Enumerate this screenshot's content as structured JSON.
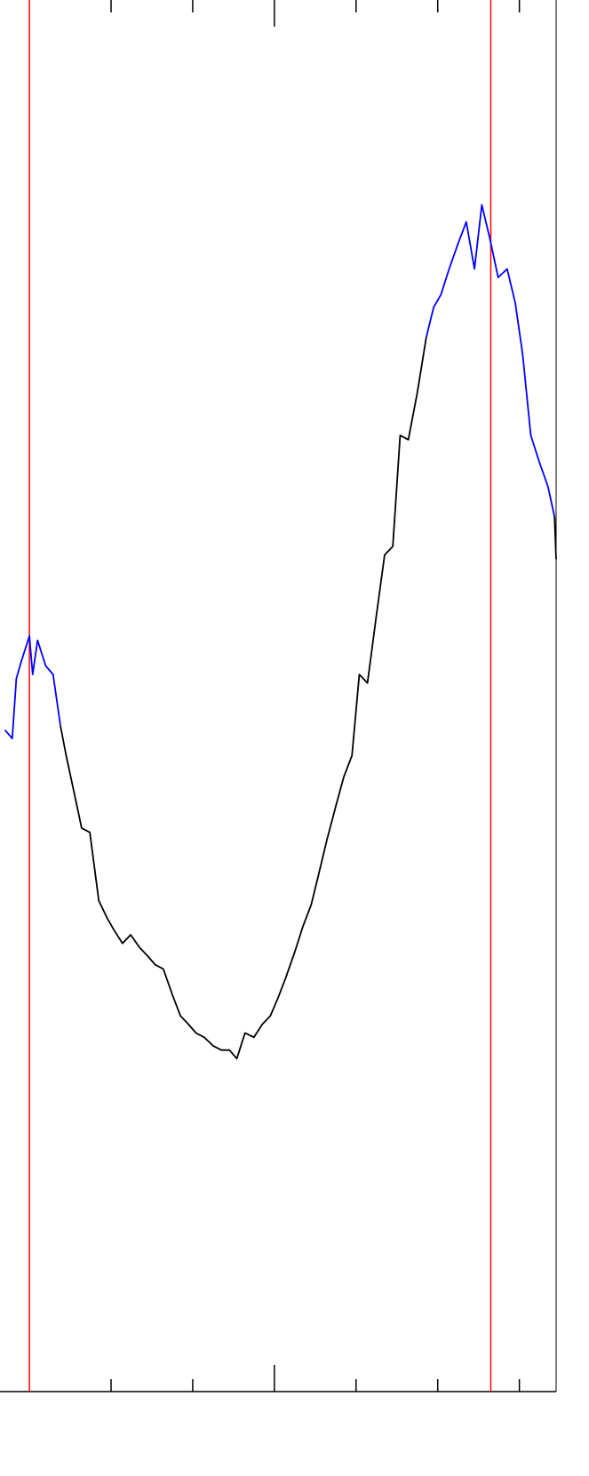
{
  "chart_data": {
    "type": "line",
    "xlim": [
      -3.36,
      3.45
    ],
    "ylim": [
      -1.78,
      1.48
    ],
    "xticks": [
      -2,
      -1,
      0,
      1,
      2,
      3
    ],
    "major_xticks": [
      0
    ],
    "vlines": [
      {
        "x": -3.0,
        "color": "#ff0000"
      },
      {
        "x": 2.65,
        "color": "#ff0000"
      }
    ],
    "x": [
      -3.3,
      -3.21,
      -3.16,
      -3.1,
      -3.0,
      -2.96,
      -2.9,
      -2.8,
      -2.71,
      -2.62,
      -2.55,
      -2.46,
      -2.36,
      -2.26,
      -2.15,
      -2.05,
      -1.96,
      -1.86,
      -1.76,
      -1.65,
      -1.55,
      -1.46,
      -1.36,
      -1.25,
      -1.15,
      -1.05,
      -0.96,
      -0.86,
      -0.75,
      -0.65,
      -0.55,
      -0.46,
      -0.36,
      -0.25,
      -0.15,
      -0.05,
      0.04,
      0.14,
      0.25,
      0.35,
      0.45,
      0.54,
      0.64,
      0.75,
      0.85,
      0.95,
      1.04,
      1.14,
      1.25,
      1.35,
      1.45,
      1.54,
      1.64,
      1.75,
      1.86,
      1.95,
      2.04,
      2.14,
      2.25,
      2.35,
      2.45,
      2.54,
      2.64,
      2.74,
      2.85,
      2.95,
      3.04,
      3.14,
      3.24,
      3.35,
      3.43,
      3.45
    ],
    "series": [
      {
        "color": "#0000ff",
        "values": [
          -0.23,
          -0.25,
          -0.11,
          -0.07,
          -0.01,
          -0.1,
          -0.02,
          -0.08,
          -0.1,
          -0.22,
          null,
          null,
          null,
          null,
          null,
          null,
          null,
          null,
          null,
          null,
          null,
          null,
          null,
          null,
          null,
          null,
          null,
          null,
          null,
          null,
          null,
          null,
          null,
          null,
          null,
          null,
          null,
          null,
          null,
          null,
          null,
          null,
          null,
          null,
          null,
          null,
          null,
          null,
          null,
          null,
          null,
          null,
          null,
          null,
          0.69,
          0.76,
          0.79,
          0.85,
          0.91,
          0.96,
          0.85,
          1.0,
          0.92,
          0.83,
          0.85,
          0.77,
          0.65,
          0.46,
          0.4,
          0.34,
          0.27,
          null
        ]
      },
      {
        "color": "#000000",
        "values": [
          null,
          null,
          null,
          null,
          null,
          null,
          null,
          null,
          null,
          -0.22,
          -0.29,
          -0.37,
          -0.46,
          -0.47,
          -0.63,
          -0.67,
          -0.7,
          -0.73,
          -0.71,
          -0.74,
          -0.76,
          -0.78,
          -0.79,
          -0.85,
          -0.9,
          -0.92,
          -0.94,
          -0.95,
          -0.97,
          -0.98,
          -0.98,
          -1.0,
          -0.94,
          -0.95,
          -0.92,
          -0.9,
          -0.86,
          -0.81,
          -0.75,
          -0.69,
          -0.64,
          -0.57,
          -0.49,
          -0.41,
          -0.34,
          -0.29,
          -0.1,
          -0.12,
          0.04,
          0.18,
          0.2,
          0.46,
          0.45,
          0.56,
          0.69,
          null,
          null,
          null,
          null,
          null,
          null,
          null,
          null,
          null,
          null,
          null,
          null,
          null,
          null,
          null,
          0.27,
          0.17
        ]
      }
    ]
  }
}
